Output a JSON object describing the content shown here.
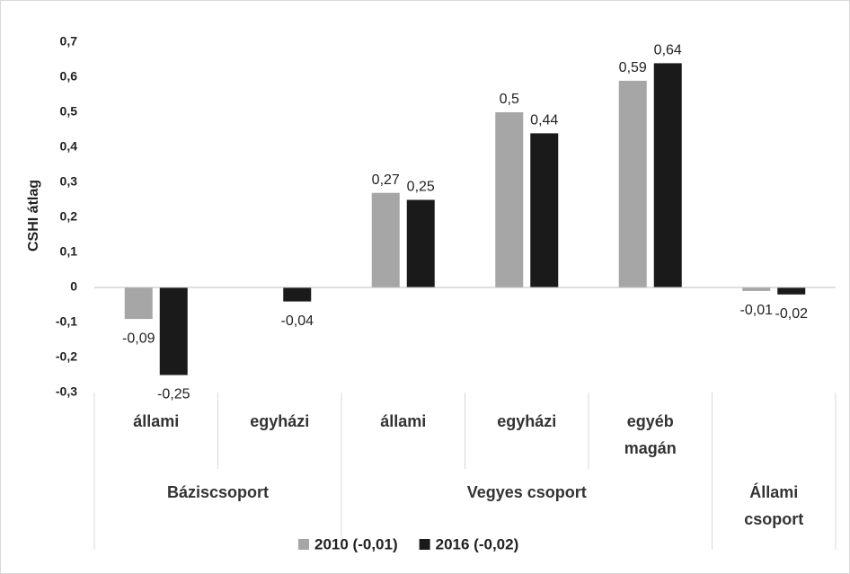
{
  "chart_data": {
    "type": "bar",
    "y_label": "CSHI átlag",
    "groups": [
      {
        "name": "Báziscsoport",
        "categories": [
          "állami",
          "egyházi"
        ]
      },
      {
        "name": "Vegyes csoport",
        "categories": [
          "állami",
          "egyházi",
          "egyéb magán"
        ]
      },
      {
        "name": "Állami csoport",
        "categories": [
          null
        ]
      }
    ],
    "series": [
      {
        "name": "2010 (-0,01)",
        "color": "#a6a6a6",
        "values": [
          -0.09,
          null,
          0.27,
          0.5,
          0.59,
          -0.01
        ],
        "value_labels": [
          "-0,09",
          null,
          "0,27",
          "0,5",
          "0,59",
          "-0,01"
        ]
      },
      {
        "name": "2016 (-0,02)",
        "color": "#1a1a1a",
        "values": [
          -0.25,
          -0.04,
          0.25,
          0.44,
          0.64,
          -0.02
        ],
        "value_labels": [
          "-0,25",
          "-0,04",
          "0,25",
          "0,44",
          "0,64",
          "-0,02"
        ]
      }
    ],
    "ylim": [
      -0.3,
      0.7
    ],
    "yticks": [
      {
        "value": -0.3,
        "label": "-0,3"
      },
      {
        "value": -0.2,
        "label": "-0,2"
      },
      {
        "value": -0.1,
        "label": "-0,1"
      },
      0,
      {
        "value": 0.1,
        "label": "0,1"
      },
      {
        "value": 0.2,
        "label": "0,2"
      },
      {
        "value": 0.3,
        "label": "0,3"
      },
      {
        "value": 0.4,
        "label": "0,4"
      },
      {
        "value": 0.5,
        "label": "0,5"
      },
      {
        "value": 0.6,
        "label": "0,6"
      },
      {
        "value": 0.7,
        "label": "0,7"
      }
    ],
    "grid": false,
    "legend": "bottom"
  }
}
